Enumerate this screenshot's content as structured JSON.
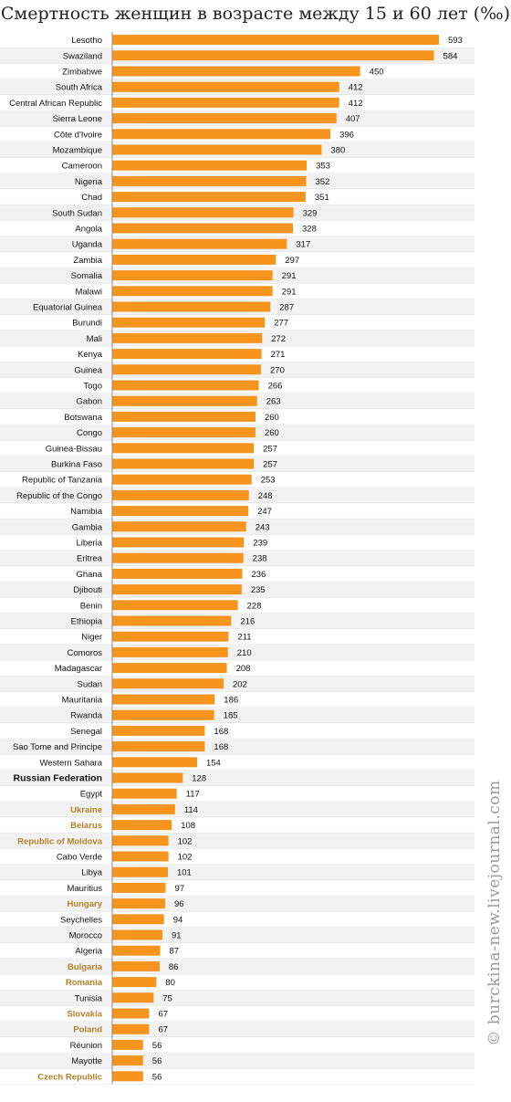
{
  "title": "Смертность женщин в возрасте между 15 и 60 лет (‰)",
  "watermark": "© burckina-new.livejournal.com",
  "colors": {
    "bar": "#f7941d",
    "label_default": "#111111",
    "label_highlight": "#b3812a",
    "row_alt": "#f2f2f2",
    "row_line": "#d9d9d9",
    "axis": "#8a8a8a"
  },
  "chart_data": {
    "type": "bar",
    "orientation": "horizontal",
    "title": "Смертность женщин в возрасте между 15 и 60 лет (‰)",
    "xlabel": "",
    "ylabel": "",
    "xlim": [
      0,
      600
    ],
    "grid": false,
    "categories": [
      "Lesotho",
      "Swaziland",
      "Zimbabwe",
      "South Africa",
      "Central African Republic",
      "Sierra Leone",
      "Côte d'Ivoire",
      "Mozambique",
      "Cameroon",
      "Nigeria",
      "Chad",
      "South Sudan",
      "Angola",
      "Uganda",
      "Zambia",
      "Somalia",
      "Malawi",
      "Equatorial Guinea",
      "Burundi",
      "Mali",
      "Kenya",
      "Guinea",
      "Togo",
      "Gabon",
      "Botswana",
      "Congo",
      "Guinea-Bissau",
      "Burkina Faso",
      "Republic of Tanzania",
      "Republic of the Congo",
      "Namibia",
      "Gambia",
      "Liberia",
      "Eritrea",
      "Ghana",
      "Djibouti",
      "Benin",
      "Ethiopia",
      "Niger",
      "Comoros",
      "Madagascar",
      "Sudan",
      "Mauritania",
      "Rwanda",
      "Senegal",
      "Sao Tome and Principe",
      "Western Sahara",
      "Russian Federation",
      "Egypt",
      "Ukraine",
      "Belarus",
      "Republic of Moldova",
      "Cabo Verde",
      "Libya",
      "Mauritius",
      "Hungary",
      "Seychelles",
      "Morocco",
      "Algeria",
      "Bulgaria",
      "Romania",
      "Tunisia",
      "Slovakia",
      "Poland",
      "Réunion",
      "Mayotte",
      "Czech Republic"
    ],
    "values": [
      593,
      584,
      450,
      412,
      412,
      407,
      396,
      380,
      353,
      352,
      351,
      329,
      328,
      317,
      297,
      291,
      291,
      287,
      277,
      272,
      271,
      270,
      266,
      263,
      260,
      260,
      257,
      257,
      253,
      248,
      247,
      243,
      239,
      238,
      236,
      235,
      228,
      216,
      211,
      210,
      208,
      202,
      186,
      185,
      168,
      168,
      154,
      128,
      117,
      114,
      108,
      102,
      102,
      101,
      97,
      96,
      94,
      91,
      87,
      86,
      80,
      75,
      67,
      67,
      56,
      56,
      56
    ],
    "bold_categories": [
      "Russian Federation"
    ],
    "highlight_categories": [
      "Ukraine",
      "Belarus",
      "Republic of Moldova",
      "Hungary",
      "Bulgaria",
      "Romania",
      "Slovakia",
      "Poland",
      "Czech Republic"
    ]
  }
}
